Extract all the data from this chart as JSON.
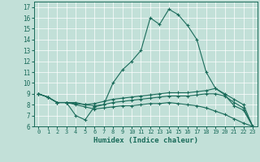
{
  "xlabel": "Humidex (Indice chaleur)",
  "xlim": [
    -0.5,
    23.5
  ],
  "ylim": [
    6,
    17.5
  ],
  "yticks": [
    6,
    7,
    8,
    9,
    10,
    11,
    12,
    13,
    14,
    15,
    16,
    17
  ],
  "xticks": [
    0,
    1,
    2,
    3,
    4,
    5,
    6,
    7,
    8,
    9,
    10,
    11,
    12,
    13,
    14,
    15,
    16,
    17,
    18,
    19,
    20,
    21,
    22,
    23
  ],
  "bg_color": "#c2e0d8",
  "line_color": "#1a6b5a",
  "lines": [
    {
      "x": [
        0,
        1,
        2,
        3,
        4,
        5,
        6,
        7,
        8,
        9,
        10,
        11,
        12,
        13,
        14,
        15,
        16,
        17,
        18,
        19,
        20,
        21,
        22,
        23
      ],
      "y": [
        9.0,
        8.7,
        8.2,
        8.2,
        7.0,
        6.6,
        7.8,
        8.0,
        10.0,
        11.2,
        12.0,
        13.0,
        16.0,
        15.4,
        16.8,
        16.3,
        15.3,
        14.0,
        11.0,
        9.5,
        8.9,
        7.9,
        7.5,
        6.0
      ]
    },
    {
      "x": [
        0,
        1,
        2,
        3,
        4,
        5,
        6,
        7,
        8,
        9,
        10,
        11,
        12,
        13,
        14,
        15,
        16,
        17,
        18,
        19,
        20,
        21,
        22,
        23
      ],
      "y": [
        9.0,
        8.7,
        8.2,
        8.2,
        8.2,
        8.0,
        8.1,
        8.3,
        8.5,
        8.6,
        8.7,
        8.8,
        8.9,
        9.0,
        9.1,
        9.1,
        9.1,
        9.2,
        9.3,
        9.5,
        9.0,
        8.5,
        8.0,
        6.0
      ]
    },
    {
      "x": [
        0,
        1,
        2,
        3,
        4,
        5,
        6,
        7,
        8,
        9,
        10,
        11,
        12,
        13,
        14,
        15,
        16,
        17,
        18,
        19,
        20,
        21,
        22,
        23
      ],
      "y": [
        9.0,
        8.7,
        8.2,
        8.2,
        8.1,
        8.0,
        7.9,
        8.0,
        8.2,
        8.3,
        8.4,
        8.5,
        8.6,
        8.7,
        8.8,
        8.8,
        8.8,
        8.9,
        9.0,
        9.0,
        8.8,
        8.2,
        7.7,
        6.0
      ]
    },
    {
      "x": [
        0,
        1,
        2,
        3,
        4,
        5,
        6,
        7,
        8,
        9,
        10,
        11,
        12,
        13,
        14,
        15,
        16,
        17,
        18,
        19,
        20,
        21,
        22,
        23
      ],
      "y": [
        9.0,
        8.7,
        8.2,
        8.2,
        8.0,
        7.8,
        7.6,
        7.7,
        7.8,
        7.9,
        7.9,
        8.0,
        8.1,
        8.1,
        8.2,
        8.1,
        8.0,
        7.9,
        7.7,
        7.4,
        7.1,
        6.7,
        6.3,
        6.0
      ]
    }
  ]
}
